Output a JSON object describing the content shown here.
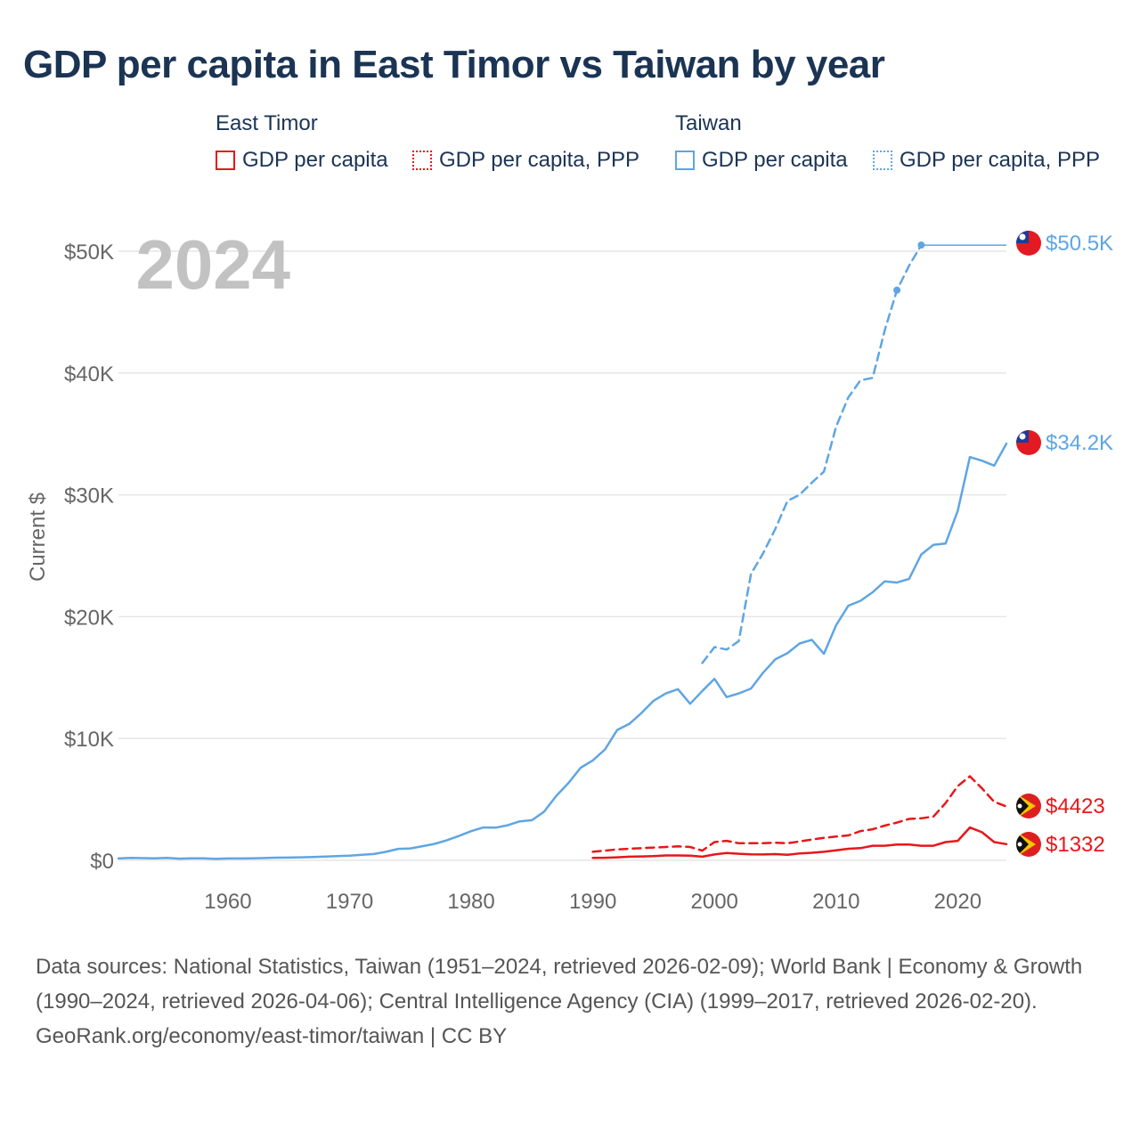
{
  "title": "GDP per capita in East Timor vs Taiwan by year",
  "legend": {
    "groups": [
      {
        "name": "East Timor",
        "color": "#e8161a",
        "items": [
          {
            "label": "GDP per capita",
            "style": "solid"
          },
          {
            "label": "GDP per capita, PPP",
            "style": "dotted"
          }
        ]
      },
      {
        "name": "Taiwan",
        "color": "#5fa5e3",
        "items": [
          {
            "label": "GDP per capita",
            "style": "solid"
          },
          {
            "label": "GDP per capita, PPP",
            "style": "dotted"
          }
        ]
      }
    ]
  },
  "chart_data": {
    "type": "line",
    "title": "GDP per capita in East Timor vs Taiwan by year",
    "year_label": "2024",
    "ylabel": "Current $",
    "xlabel": "",
    "xlim": [
      1951,
      2024
    ],
    "ylim": [
      0,
      52000
    ],
    "x_ticks": [
      1960,
      1970,
      1980,
      1990,
      2000,
      2010,
      2020
    ],
    "y_ticks": [
      {
        "value": 0,
        "label": "$0"
      },
      {
        "value": 10000,
        "label": "$10K"
      },
      {
        "value": 20000,
        "label": "$20K"
      },
      {
        "value": 30000,
        "label": "$30K"
      },
      {
        "value": 40000,
        "label": "$40K"
      },
      {
        "value": 50000,
        "label": "$50K"
      }
    ],
    "grid": true,
    "series": [
      {
        "name": "Taiwan GDP per capita",
        "country": "Taiwan",
        "color": "#5fa5e3",
        "dash": "solid",
        "end_label": "$34.2K",
        "points": [
          [
            1951,
            150
          ],
          [
            1952,
            200
          ],
          [
            1953,
            180
          ],
          [
            1954,
            170
          ],
          [
            1955,
            200
          ],
          [
            1956,
            140
          ],
          [
            1957,
            160
          ],
          [
            1958,
            170
          ],
          [
            1959,
            120
          ],
          [
            1960,
            150
          ],
          [
            1961,
            150
          ],
          [
            1962,
            170
          ],
          [
            1963,
            190
          ],
          [
            1964,
            220
          ],
          [
            1965,
            230
          ],
          [
            1966,
            250
          ],
          [
            1967,
            280
          ],
          [
            1968,
            310
          ],
          [
            1969,
            350
          ],
          [
            1970,
            390
          ],
          [
            1971,
            450
          ],
          [
            1972,
            520
          ],
          [
            1973,
            700
          ],
          [
            1974,
            940
          ],
          [
            1975,
            980
          ],
          [
            1976,
            1160
          ],
          [
            1977,
            1350
          ],
          [
            1978,
            1650
          ],
          [
            1979,
            2000
          ],
          [
            1980,
            2400
          ],
          [
            1981,
            2700
          ],
          [
            1982,
            2680
          ],
          [
            1983,
            2880
          ],
          [
            1984,
            3200
          ],
          [
            1985,
            3300
          ],
          [
            1986,
            4000
          ],
          [
            1987,
            5300
          ],
          [
            1988,
            6350
          ],
          [
            1989,
            7600
          ],
          [
            1990,
            8200
          ],
          [
            1991,
            9100
          ],
          [
            1992,
            10700
          ],
          [
            1993,
            11200
          ],
          [
            1994,
            12100
          ],
          [
            1995,
            13100
          ],
          [
            1996,
            13700
          ],
          [
            1997,
            14050
          ],
          [
            1998,
            12850
          ],
          [
            1999,
            13900
          ],
          [
            2000,
            14900
          ],
          [
            2001,
            13400
          ],
          [
            2002,
            13700
          ],
          [
            2003,
            14100
          ],
          [
            2004,
            15400
          ],
          [
            2005,
            16500
          ],
          [
            2006,
            17000
          ],
          [
            2007,
            17800
          ],
          [
            2008,
            18100
          ],
          [
            2009,
            16950
          ],
          [
            2010,
            19300
          ],
          [
            2011,
            20900
          ],
          [
            2012,
            21300
          ],
          [
            2013,
            22000
          ],
          [
            2014,
            22900
          ],
          [
            2015,
            22800
          ],
          [
            2016,
            23100
          ],
          [
            2017,
            25100
          ],
          [
            2018,
            25900
          ],
          [
            2019,
            26000
          ],
          [
            2020,
            28700
          ],
          [
            2021,
            33100
          ],
          [
            2022,
            32800
          ],
          [
            2023,
            32400
          ],
          [
            2024,
            34200
          ]
        ]
      },
      {
        "name": "Taiwan GDP per capita, PPP",
        "country": "Taiwan",
        "color": "#5fa5e3",
        "dash": "dashed",
        "end_label": "$50.5K",
        "points": [
          [
            1999,
            16200
          ],
          [
            2000,
            17500
          ],
          [
            2001,
            17300
          ],
          [
            2002,
            18000
          ],
          [
            2003,
            23500
          ],
          [
            2004,
            25200
          ],
          [
            2005,
            27200
          ],
          [
            2006,
            29500
          ],
          [
            2007,
            30000
          ],
          [
            2008,
            31000
          ],
          [
            2009,
            31900
          ],
          [
            2010,
            35600
          ],
          [
            2011,
            38000
          ],
          [
            2012,
            39400
          ],
          [
            2013,
            39600
          ],
          [
            2014,
            43500
          ],
          [
            2015,
            46800
          ],
          [
            2016,
            48800
          ],
          [
            2017,
            50500
          ]
        ],
        "markers": [
          [
            2015,
            46800
          ],
          [
            2017,
            50500
          ]
        ],
        "carry_forward": [
          [
            2017,
            50500
          ],
          [
            2024,
            50500
          ]
        ]
      },
      {
        "name": "East Timor GDP per capita",
        "country": "East Timor",
        "color": "#e8161a",
        "dash": "solid",
        "end_label": "$1332",
        "points": [
          [
            1990,
            200
          ],
          [
            1991,
            210
          ],
          [
            1992,
            250
          ],
          [
            1993,
            300
          ],
          [
            1994,
            320
          ],
          [
            1995,
            350
          ],
          [
            1996,
            400
          ],
          [
            1997,
            400
          ],
          [
            1998,
            380
          ],
          [
            1999,
            300
          ],
          [
            2000,
            480
          ],
          [
            2001,
            600
          ],
          [
            2002,
            540
          ],
          [
            2003,
            500
          ],
          [
            2004,
            480
          ],
          [
            2005,
            510
          ],
          [
            2006,
            460
          ],
          [
            2007,
            560
          ],
          [
            2008,
            620
          ],
          [
            2009,
            700
          ],
          [
            2010,
            820
          ],
          [
            2011,
            950
          ],
          [
            2012,
            1000
          ],
          [
            2013,
            1200
          ],
          [
            2014,
            1200
          ],
          [
            2015,
            1300
          ],
          [
            2016,
            1300
          ],
          [
            2017,
            1200
          ],
          [
            2018,
            1200
          ],
          [
            2019,
            1500
          ],
          [
            2020,
            1600
          ],
          [
            2021,
            2700
          ],
          [
            2022,
            2300
          ],
          [
            2023,
            1500
          ],
          [
            2024,
            1332
          ]
        ]
      },
      {
        "name": "East Timor GDP per capita, PPP",
        "country": "East Timor",
        "color": "#e8161a",
        "dash": "dashed",
        "end_label": "$4423",
        "points": [
          [
            1990,
            700
          ],
          [
            1991,
            800
          ],
          [
            1992,
            900
          ],
          [
            1993,
            950
          ],
          [
            1994,
            1000
          ],
          [
            1995,
            1050
          ],
          [
            1996,
            1100
          ],
          [
            1997,
            1150
          ],
          [
            1998,
            1100
          ],
          [
            1999,
            800
          ],
          [
            2000,
            1500
          ],
          [
            2001,
            1600
          ],
          [
            2002,
            1400
          ],
          [
            2003,
            1400
          ],
          [
            2004,
            1400
          ],
          [
            2005,
            1450
          ],
          [
            2006,
            1400
          ],
          [
            2007,
            1550
          ],
          [
            2008,
            1700
          ],
          [
            2009,
            1850
          ],
          [
            2010,
            1950
          ],
          [
            2011,
            2050
          ],
          [
            2012,
            2400
          ],
          [
            2013,
            2550
          ],
          [
            2014,
            2850
          ],
          [
            2015,
            3100
          ],
          [
            2016,
            3400
          ],
          [
            2017,
            3450
          ],
          [
            2018,
            3600
          ],
          [
            2019,
            4700
          ],
          [
            2020,
            6100
          ],
          [
            2021,
            6900
          ],
          [
            2022,
            5900
          ],
          [
            2023,
            4800
          ],
          [
            2024,
            4423
          ]
        ]
      }
    ]
  },
  "footer": {
    "sources": "Data sources: National Statistics, Taiwan (1951–2024, retrieved 2026-02-09); World Bank | Economy & Growth (1990–2024, retrieved 2026-04-06); Central Intelligence Agency (CIA) (1999–2017, retrieved 2026-02-20).",
    "credit": "GeoRank.org/economy/east-timor/taiwan | CC BY"
  }
}
